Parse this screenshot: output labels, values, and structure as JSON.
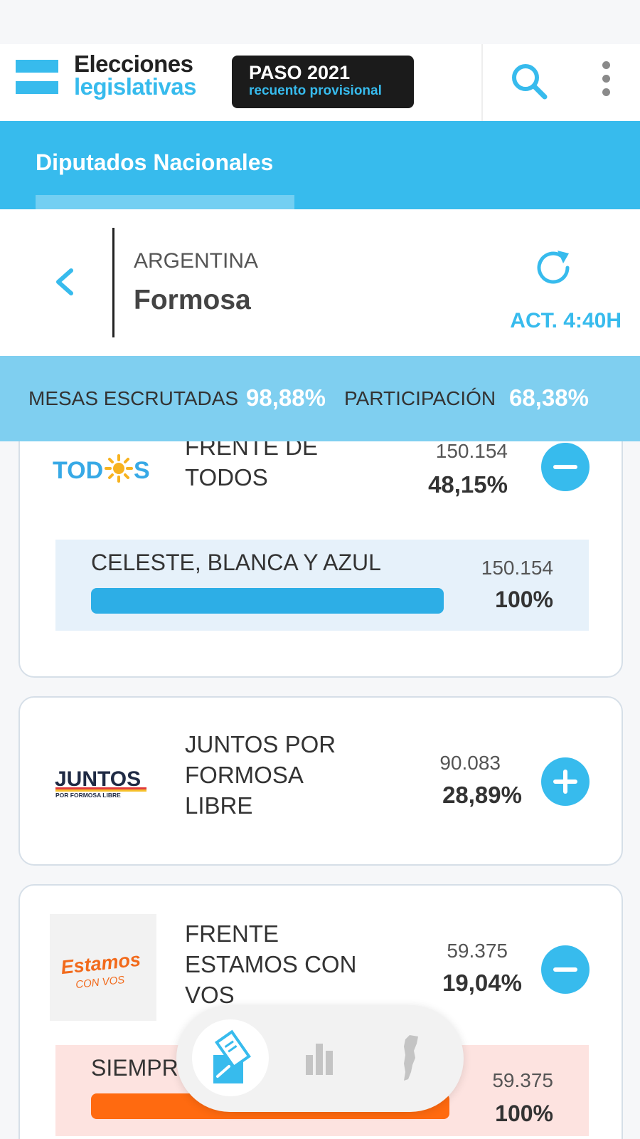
{
  "header": {
    "brand_line1": "Elecciones",
    "brand_line2": "legislativas",
    "badge_title": "PASO 2021",
    "badge_subtitle": "recuento provisional"
  },
  "tabs": [
    {
      "label": "Diputados Nacionales",
      "active": true
    }
  ],
  "location": {
    "country": "ARGENTINA",
    "province": "Formosa",
    "updated": "ACT. 4:40H"
  },
  "stats": {
    "mesas_label": "MESAS ESCRUTADAS",
    "mesas_value": "98,88%",
    "participacion_label": "PARTICIPACIÓN",
    "participacion_value": "68,38%"
  },
  "parties": [
    {
      "name": "FRENTE DE TODOS",
      "logo_text": "TOD S",
      "votes": "150.154",
      "percent": "48,15%",
      "expanded": true,
      "lists": [
        {
          "name": "CELESTE, BLANCA Y AZUL",
          "votes": "150.154",
          "percent": "100%",
          "fraction": 1.0
        }
      ]
    },
    {
      "name": "JUNTOS POR FORMOSA LIBRE",
      "logo_text": "JUNTOS",
      "logo_subtext": "POR FORMOSA LIBRE",
      "votes": "90.083",
      "percent": "28,89%",
      "expanded": false,
      "lists": []
    },
    {
      "name": "FRENTE ESTAMOS CON VOS",
      "logo_text": "Estamos",
      "logo_subtext": "CON VOS",
      "votes": "59.375",
      "percent": "19,04%",
      "expanded": true,
      "lists": [
        {
          "name": "SIEMPR",
          "votes": "59.375",
          "percent": "100%",
          "fraction": 1.0
        }
      ]
    }
  ],
  "colors": {
    "accent": "#37bbed",
    "stats_band": "#7fcff0",
    "list_bar_todos": "#2daee6",
    "list_bg_todos": "#e6f1fa",
    "list_bar_estamos": "#ff6a10",
    "list_bg_estamos": "#fde3e0"
  },
  "bottom_nav": [
    {
      "icon": "ballot-box-icon",
      "active": true
    },
    {
      "icon": "bar-chart-icon",
      "active": false
    },
    {
      "icon": "argentina-map-icon",
      "active": false
    }
  ]
}
